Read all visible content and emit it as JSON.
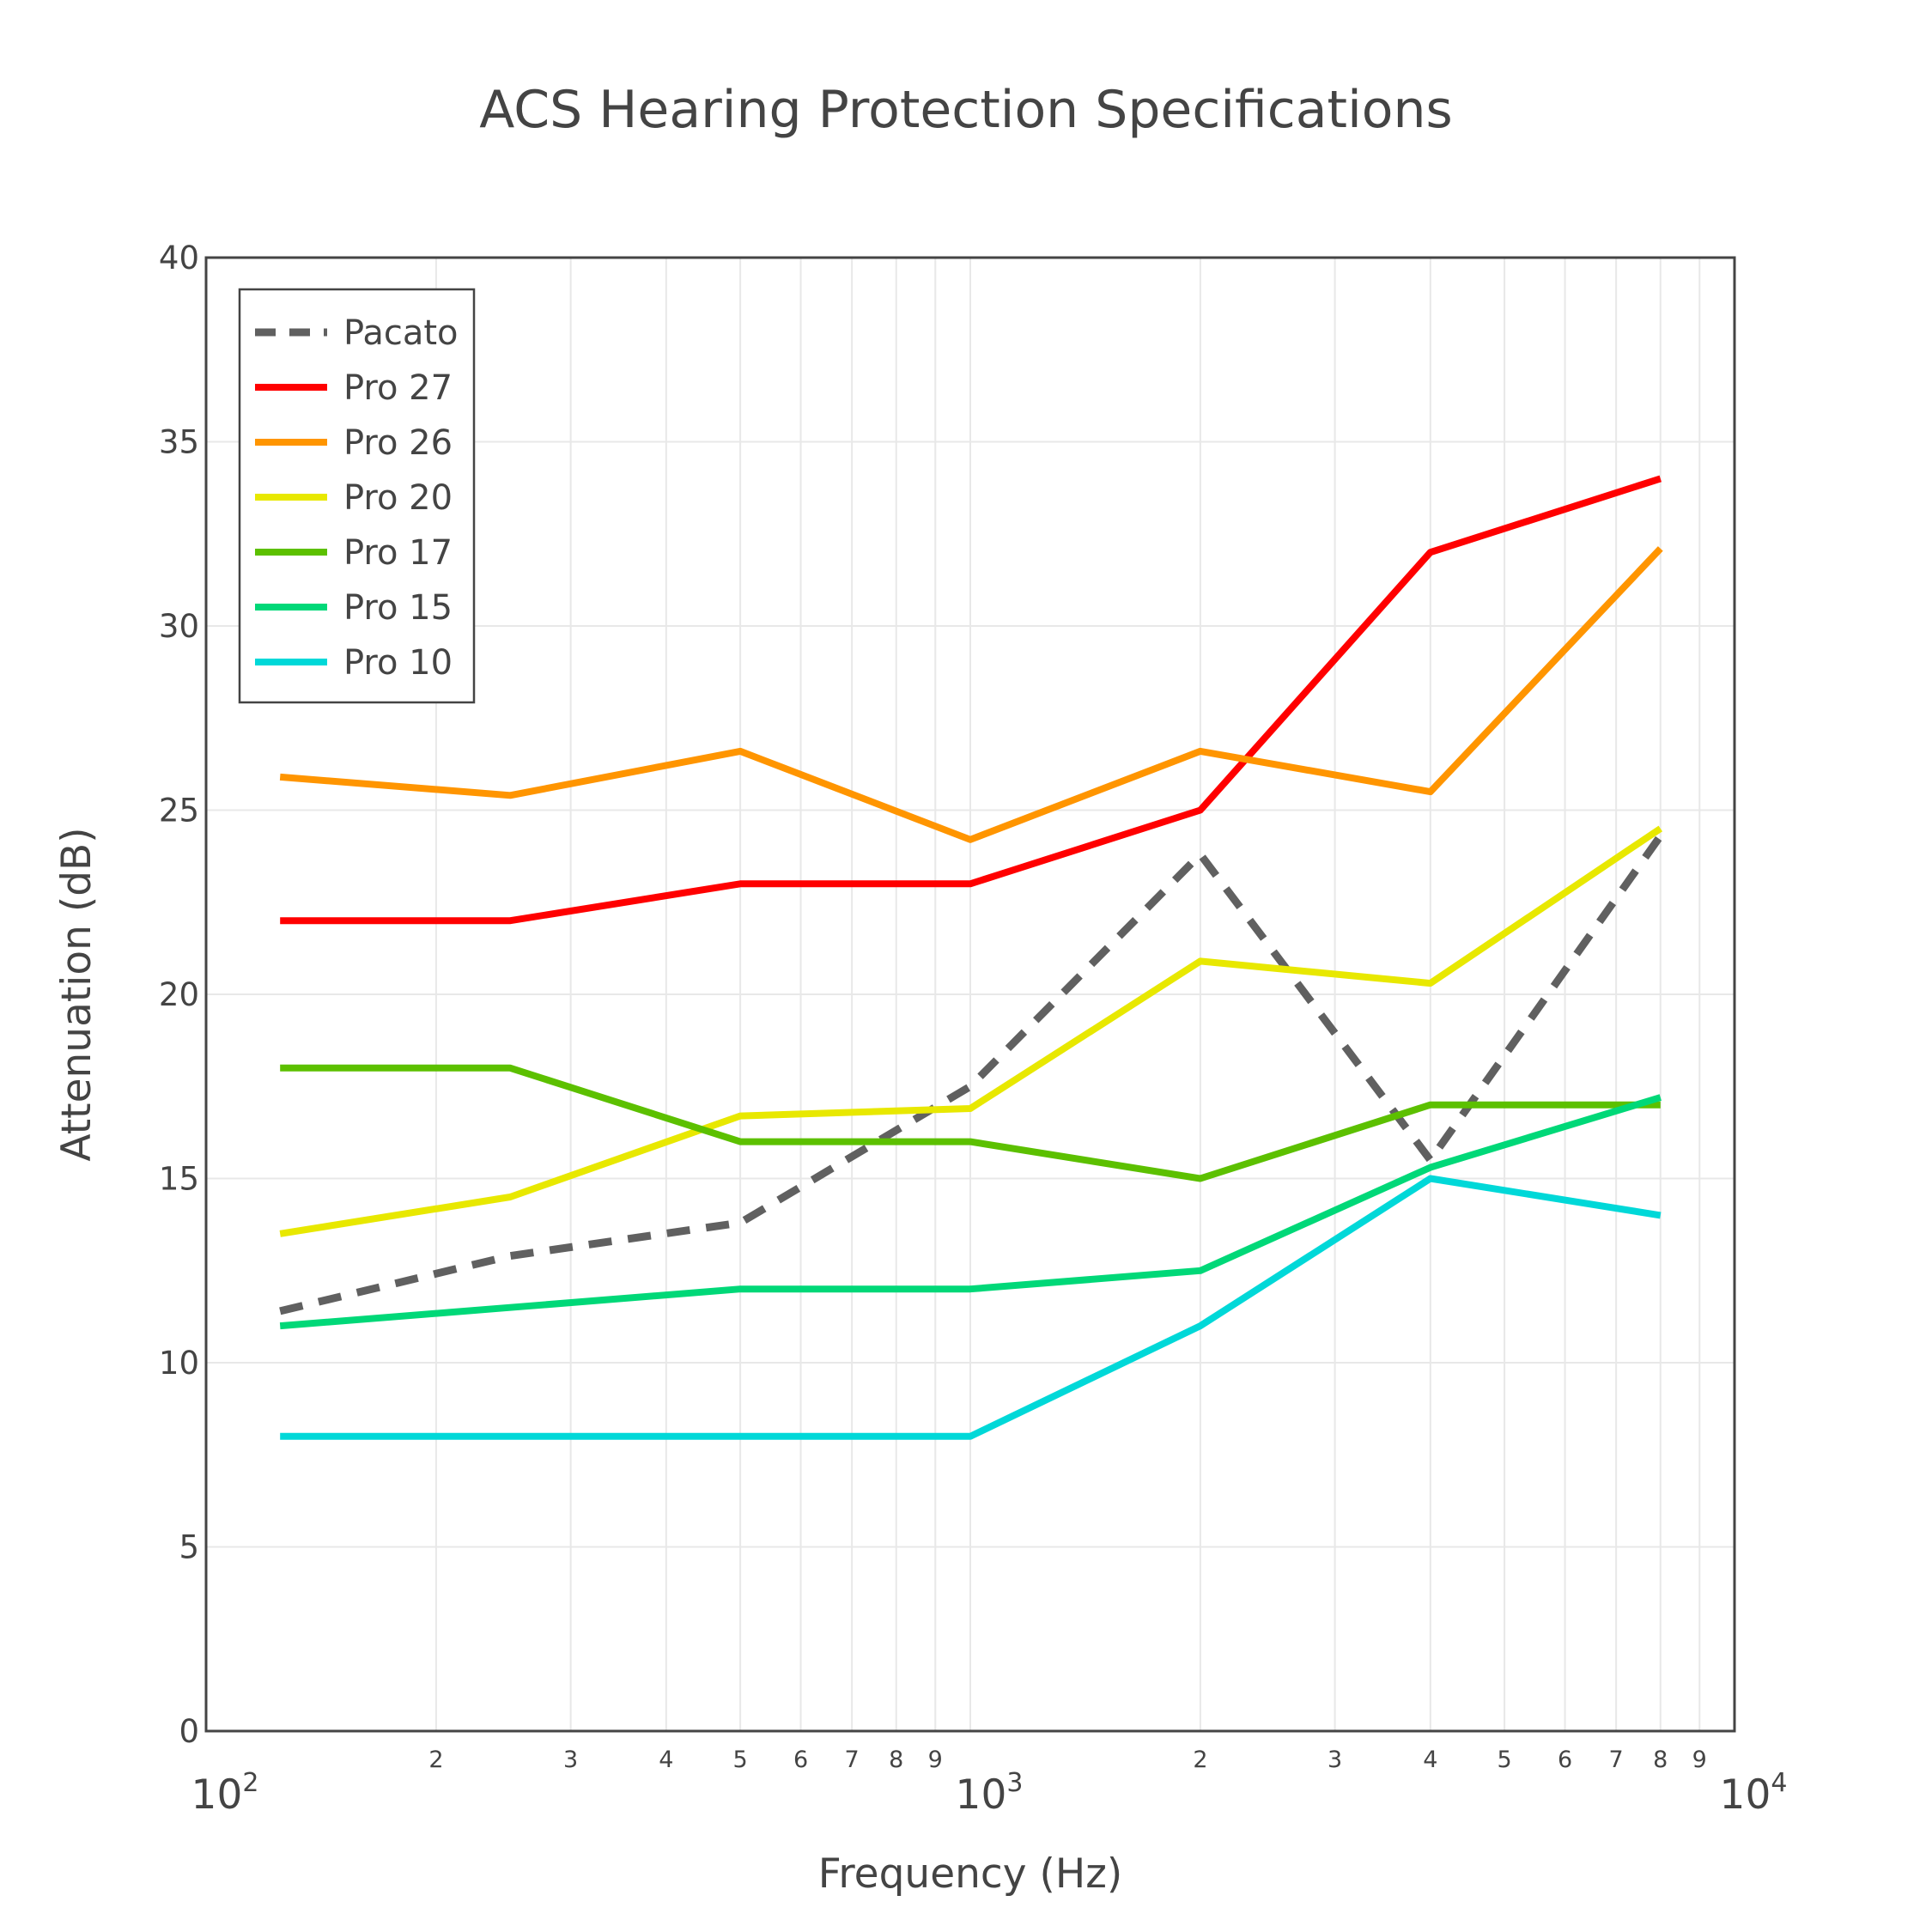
{
  "chart_data": {
    "type": "line",
    "title": "ACS Hearing Protection Specifications",
    "xlabel": "Frequency (Hz)",
    "ylabel": "Attenuation (dB)",
    "x_scale": "log",
    "xlim": [
      100,
      10000
    ],
    "ylim": [
      0,
      40
    ],
    "grid": true,
    "legend_position": "top-left",
    "y_ticks": [
      "0",
      "5",
      "10",
      "15",
      "20",
      "25",
      "30",
      "35",
      "40"
    ],
    "x_major_ticks": [
      {
        "base": "10",
        "exp": "2",
        "value": 100
      },
      {
        "base": "10",
        "exp": "3",
        "value": 1000
      },
      {
        "base": "10",
        "exp": "4",
        "value": 10000
      }
    ],
    "x_minor_ticks": [
      {
        "label": "2",
        "value": 200
      },
      {
        "label": "3",
        "value": 300
      },
      {
        "label": "4",
        "value": 400
      },
      {
        "label": "5",
        "value": 500
      },
      {
        "label": "6",
        "value": 600
      },
      {
        "label": "7",
        "value": 700
      },
      {
        "label": "8",
        "value": 800
      },
      {
        "label": "9",
        "value": 900
      },
      {
        "label": "2",
        "value": 2000
      },
      {
        "label": "3",
        "value": 3000
      },
      {
        "label": "4",
        "value": 4000
      },
      {
        "label": "5",
        "value": 5000
      },
      {
        "label": "6",
        "value": 6000
      },
      {
        "label": "7",
        "value": 7000
      },
      {
        "label": "8",
        "value": 8000
      },
      {
        "label": "9",
        "value": 9000
      }
    ],
    "x": [
      125,
      250,
      500,
      1000,
      2000,
      4000,
      8000
    ],
    "series": [
      {
        "name": "Pacato",
        "color": "#606060",
        "dash": true,
        "values": [
          11.4,
          12.9,
          13.8,
          17.5,
          23.8,
          15.5,
          24.3
        ]
      },
      {
        "name": "Pro 27",
        "color": "#ff0000",
        "dash": false,
        "values": [
          22,
          22,
          23,
          23,
          25,
          32,
          34
        ]
      },
      {
        "name": "Pro 26",
        "color": "#ff9500",
        "dash": false,
        "values": [
          25.9,
          25.4,
          26.6,
          24.2,
          26.6,
          25.5,
          32.1
        ]
      },
      {
        "name": "Pro 20",
        "color": "#e8e800",
        "dash": false,
        "values": [
          13.5,
          14.5,
          16.7,
          16.9,
          20.9,
          20.3,
          24.5
        ]
      },
      {
        "name": "Pro 17",
        "color": "#5cc000",
        "dash": false,
        "values": [
          18,
          18,
          16,
          16,
          15,
          17,
          17
        ]
      },
      {
        "name": "Pro 15",
        "color": "#00d878",
        "dash": false,
        "values": [
          11,
          11.5,
          12,
          12,
          12.5,
          15.3,
          17.2
        ]
      },
      {
        "name": "Pro 10",
        "color": "#00d8d8",
        "dash": false,
        "values": [
          8,
          8,
          8,
          8,
          11,
          15,
          14
        ]
      }
    ]
  }
}
